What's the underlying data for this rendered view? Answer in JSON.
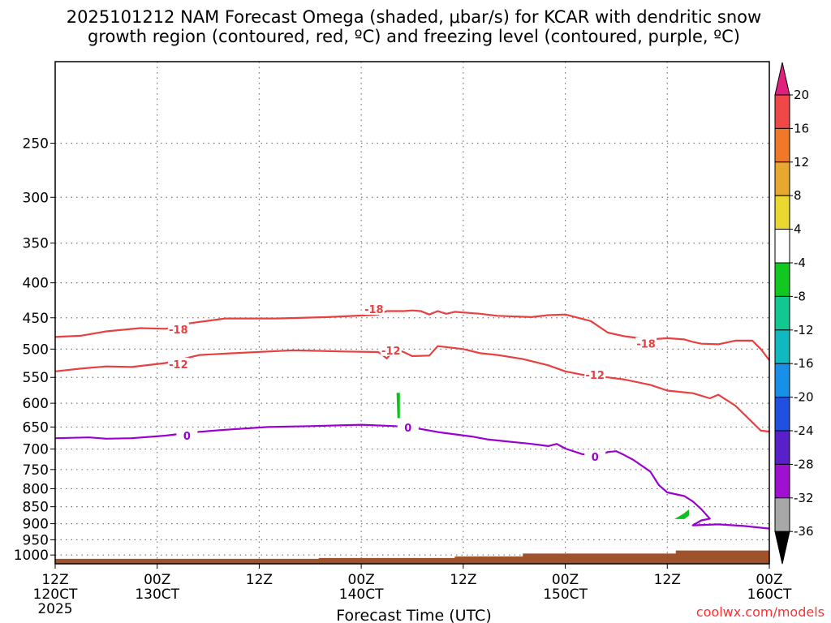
{
  "chart_data": {
    "type": "time-height cross section",
    "title_line1": "2025101212 NAM Forecast Omega (shaded, μbar/s) for KCAR with dendritic snow",
    "title_line2": "growth region (contoured, red, ºC) and freezing level (contoured, purple, ºC)",
    "xlabel": "Forecast Time (UTC)",
    "credit": "coolwx.com/models",
    "x_range_hours": [
      0,
      84
    ],
    "y_range_hpa": [
      190,
      1030
    ],
    "x_ticks": [
      {
        "hour": 0,
        "label1": "12Z",
        "label2": "120CT",
        "label3": "2025"
      },
      {
        "hour": 12,
        "label1": "00Z",
        "label2": "130CT",
        "label3": ""
      },
      {
        "hour": 24,
        "label1": "12Z",
        "label2": "",
        "label3": ""
      },
      {
        "hour": 36,
        "label1": "00Z",
        "label2": "140CT",
        "label3": ""
      },
      {
        "hour": 48,
        "label1": "12Z",
        "label2": "",
        "label3": ""
      },
      {
        "hour": 60,
        "label1": "00Z",
        "label2": "150CT",
        "label3": ""
      },
      {
        "hour": 72,
        "label1": "12Z",
        "label2": "",
        "label3": ""
      },
      {
        "hour": 84,
        "label1": "00Z",
        "label2": "160CT",
        "label3": ""
      }
    ],
    "y_ticks": [
      {
        "p": 250,
        "label": "250"
      },
      {
        "p": 300,
        "label": "300"
      },
      {
        "p": 350,
        "label": "350"
      },
      {
        "p": 400,
        "label": "400"
      },
      {
        "p": 450,
        "label": "450"
      },
      {
        "p": 500,
        "label": "500"
      },
      {
        "p": 550,
        "label": "550"
      },
      {
        "p": 600,
        "label": "600"
      },
      {
        "p": 650,
        "label": "650"
      },
      {
        "p": 700,
        "label": "700"
      },
      {
        "p": 750,
        "label": "750"
      },
      {
        "p": 800,
        "label": "800"
      },
      {
        "p": 850,
        "label": "850"
      },
      {
        "p": 900,
        "label": "900"
      },
      {
        "p": 950,
        "label": "950"
      },
      {
        "p": 1000,
        "label": "1000"
      }
    ],
    "contours": [
      {
        "name": "-18C isotherm",
        "label": "-18",
        "color": "#e84040",
        "label_positions": [
          {
            "hour": 14.5,
            "p": 468
          },
          {
            "hour": 37.5,
            "p": 437
          },
          {
            "hour": 69.5,
            "p": 491
          }
        ],
        "points": [
          [
            0,
            480
          ],
          [
            3,
            478
          ],
          [
            6,
            471
          ],
          [
            10,
            466
          ],
          [
            13,
            467
          ],
          [
            16,
            458
          ],
          [
            20,
            451
          ],
          [
            26,
            451
          ],
          [
            32,
            449
          ],
          [
            37,
            446
          ],
          [
            38,
            445
          ],
          [
            39,
            440
          ],
          [
            41,
            440
          ],
          [
            42,
            439
          ],
          [
            43,
            440
          ],
          [
            44,
            445
          ],
          [
            45,
            440
          ],
          [
            46,
            444
          ],
          [
            47,
            441
          ],
          [
            50,
            444
          ],
          [
            52,
            447
          ],
          [
            56,
            449
          ],
          [
            58,
            446
          ],
          [
            60,
            445
          ],
          [
            63,
            455
          ],
          [
            65,
            473
          ],
          [
            67,
            479
          ],
          [
            70,
            484
          ],
          [
            72,
            482
          ],
          [
            74,
            484
          ],
          [
            75,
            488
          ],
          [
            76,
            491
          ],
          [
            78,
            492
          ],
          [
            80,
            486
          ],
          [
            82,
            486
          ],
          [
            83,
            500
          ],
          [
            84,
            519
          ]
        ]
      },
      {
        "name": "-12C isotherm",
        "label": "-12",
        "color": "#e84040",
        "label_positions": [
          {
            "hour": 14.5,
            "p": 526
          },
          {
            "hour": 39.5,
            "p": 502
          },
          {
            "hour": 63.5,
            "p": 545
          }
        ],
        "points": [
          [
            0,
            539
          ],
          [
            3,
            534
          ],
          [
            6,
            530
          ],
          [
            9,
            531
          ],
          [
            13,
            524
          ],
          [
            17,
            510
          ],
          [
            21,
            507
          ],
          [
            28,
            502
          ],
          [
            34,
            504
          ],
          [
            38,
            505
          ],
          [
            38.5,
            510
          ],
          [
            39,
            516
          ],
          [
            40,
            500
          ],
          [
            41,
            505
          ],
          [
            42,
            512
          ],
          [
            44,
            511
          ],
          [
            45,
            495
          ],
          [
            48,
            500
          ],
          [
            50,
            507
          ],
          [
            52,
            510
          ],
          [
            55,
            517
          ],
          [
            58,
            528
          ],
          [
            60,
            539
          ],
          [
            62,
            545
          ],
          [
            65,
            550
          ],
          [
            67,
            554
          ],
          [
            70,
            564
          ],
          [
            72,
            575
          ],
          [
            75,
            580
          ],
          [
            77,
            590
          ],
          [
            78,
            583
          ],
          [
            80,
            605
          ],
          [
            81,
            622
          ],
          [
            83,
            658
          ],
          [
            84,
            660
          ]
        ]
      },
      {
        "name": "0C freezing level",
        "label": "0",
        "color": "#9a00d0",
        "label_positions": [
          {
            "hour": 15.5,
            "p": 669
          },
          {
            "hour": 41.5,
            "p": 651
          },
          {
            "hour": 63.5,
            "p": 718
          }
        ],
        "points": [
          [
            0,
            675
          ],
          [
            4,
            673
          ],
          [
            6,
            676
          ],
          [
            9,
            675
          ],
          [
            13,
            669
          ],
          [
            16,
            662
          ],
          [
            20,
            656
          ],
          [
            25,
            650
          ],
          [
            30,
            648
          ],
          [
            36,
            645
          ],
          [
            40,
            648
          ],
          [
            42,
            651
          ],
          [
            45,
            661
          ],
          [
            49,
            671
          ],
          [
            51,
            678
          ],
          [
            53,
            682
          ],
          [
            56,
            688
          ],
          [
            58,
            693
          ],
          [
            59,
            688
          ],
          [
            60,
            699
          ],
          [
            62,
            712
          ],
          [
            64,
            715
          ],
          [
            65,
            707
          ],
          [
            66,
            705
          ],
          [
            67,
            715
          ],
          [
            68,
            726
          ],
          [
            70,
            755
          ],
          [
            71,
            790
          ],
          [
            72,
            810
          ],
          [
            74,
            820
          ],
          [
            75,
            835
          ],
          [
            76,
            857
          ],
          [
            77,
            885
          ],
          [
            76,
            890
          ],
          [
            75,
            905
          ],
          [
            78,
            902
          ],
          [
            81,
            907
          ],
          [
            84,
            915
          ]
        ]
      }
    ],
    "omega_patches": [
      {
        "name": "omega -4 to -8 near 14 0Z",
        "color": "#10c020",
        "points": [
          [
            40.2,
            580
          ],
          [
            40.5,
            580
          ],
          [
            40.5,
            630
          ],
          [
            40.3,
            630
          ]
        ]
      },
      {
        "name": "omega -4 to -8 near 15 12Z",
        "color": "#10c020",
        "points": [
          [
            73,
            885
          ],
          [
            74,
            870
          ],
          [
            74.5,
            860
          ],
          [
            74.5,
            875
          ],
          [
            74,
            885
          ]
        ]
      }
    ],
    "terrain": {
      "name": "ground surface",
      "color": "#a0522d",
      "points": [
        [
          0,
          1013
        ],
        [
          24,
          1013
        ],
        [
          31,
          1010
        ],
        [
          45,
          1010
        ],
        [
          47,
          1005
        ],
        [
          53,
          1005
        ],
        [
          55,
          995
        ],
        [
          71,
          995
        ],
        [
          73,
          985
        ],
        [
          84,
          985
        ]
      ]
    },
    "colorbar": {
      "levels": [
        {
          "label": "20",
          "color": "#e0207f"
        },
        {
          "label": "16",
          "color": "#f04848"
        },
        {
          "label": "12",
          "color": "#f07828"
        },
        {
          "label": "8",
          "color": "#e8a830"
        },
        {
          "label": "4",
          "color": "#e8d830"
        },
        {
          "label": "-4",
          "color": "#ffffff"
        },
        {
          "label": "-8",
          "color": "#10c820"
        },
        {
          "label": "-12",
          "color": "#10c890"
        },
        {
          "label": "-16",
          "color": "#10b8c0"
        },
        {
          "label": "-20",
          "color": "#1890e8"
        },
        {
          "label": "-24",
          "color": "#2050e0"
        },
        {
          "label": "-28",
          "color": "#5820c8"
        },
        {
          "label": "-32",
          "color": "#a010d0"
        },
        {
          "label": "-36",
          "color": "#a8a8a8"
        }
      ],
      "top_arrow_color": "#e0207f",
      "bottom_arrow_color": "#000000"
    }
  }
}
